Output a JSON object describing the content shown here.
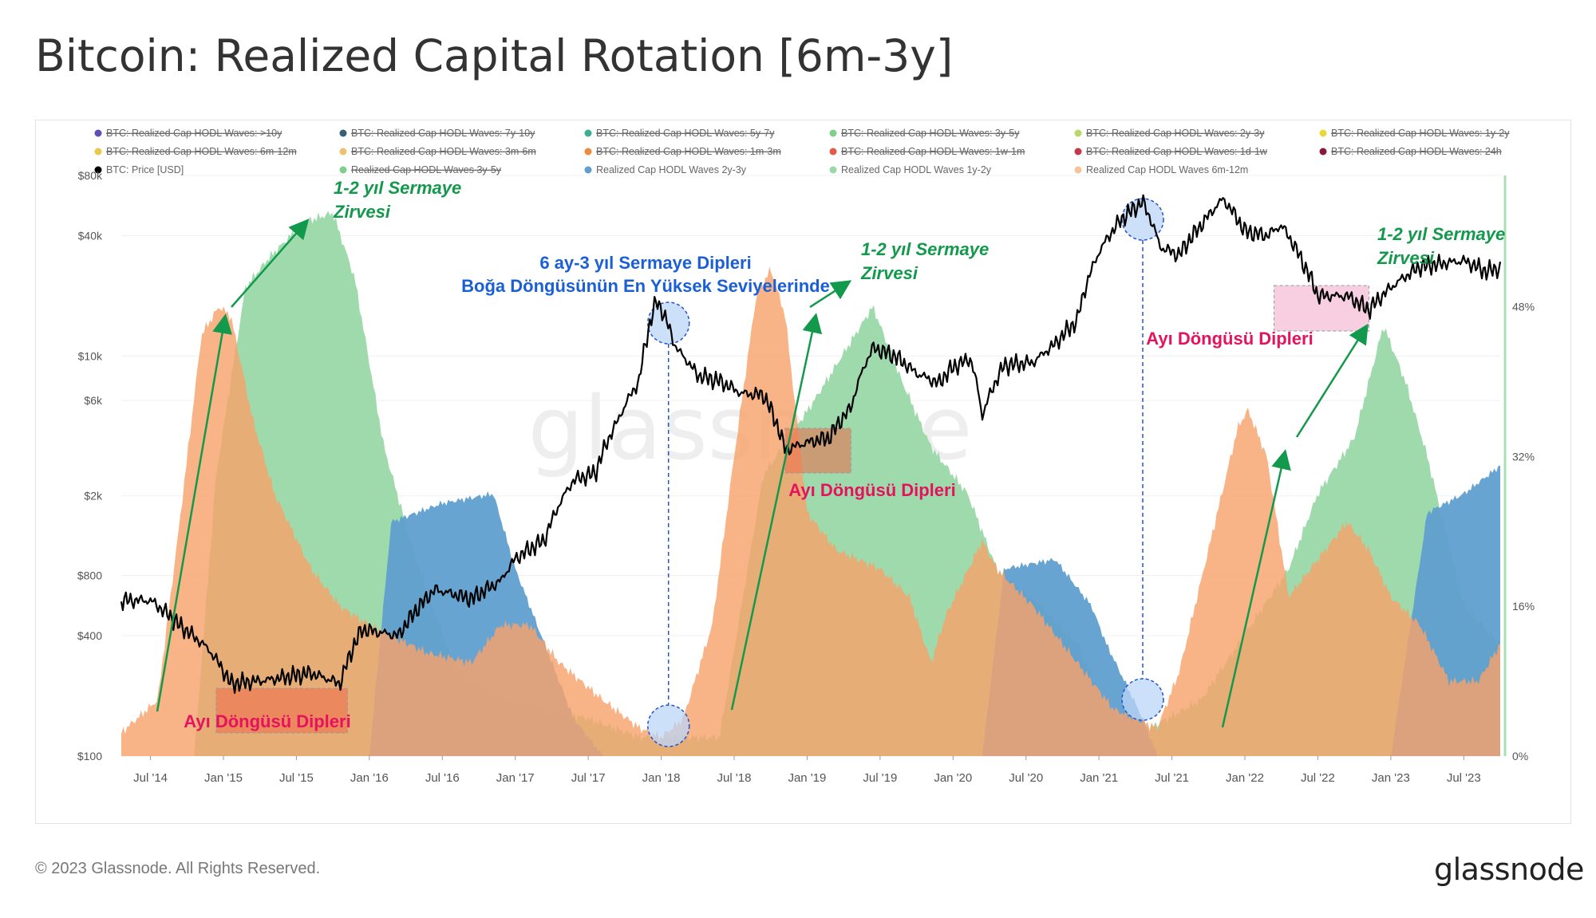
{
  "title": "Bitcoin: Realized Capital Rotation [6m-3y]",
  "footer": {
    "copyright": "© 2023 Glassnode. All Rights Reserved.",
    "logo": "glassnode"
  },
  "watermark": "glassnode",
  "colors": {
    "band_6m_12m": "#f6a26b",
    "band_1y_2y": "#99d8a8",
    "band_2y_3y": "#5f9fcf",
    "price": "#000000",
    "ann_green": "#12994b",
    "ann_blue": "#1a5fd6",
    "ann_red": "#e5135d",
    "axis_right": "#a7e1b3"
  },
  "legend": [
    {
      "label": "BTC: Realized Cap HODL Waves: >10y",
      "color": "#5e4fb3",
      "struck": true
    },
    {
      "label": "BTC: Realized Cap HODL Waves: 7y-10y",
      "color": "#36607a",
      "struck": true
    },
    {
      "label": "BTC: Realized Cap HODL Waves: 5y-7y",
      "color": "#3aaf8f",
      "struck": true
    },
    {
      "label": "BTC: Realized Cap HODL Waves: 3y-5y",
      "color": "#7fcf8c",
      "struck": true
    },
    {
      "label": "BTC: Realized Cap HODL Waves: 2y-3y",
      "color": "#b8d86a",
      "struck": true
    },
    {
      "label": "BTC: Realized Cap HODL Waves: 1y-2y",
      "color": "#e8d83a",
      "struck": true
    },
    {
      "label": "BTC: Realized Cap HODL Waves: 6m-12m",
      "color": "#e8c84a",
      "struck": true
    },
    {
      "label": "BTC: Realized Cap HODL Waves: 3m-6m",
      "color": "#efc070",
      "struck": true
    },
    {
      "label": "BTC: Realized Cap HODL Waves: 1m-3m",
      "color": "#f08a3c",
      "struck": true
    },
    {
      "label": "BTC: Realized Cap HODL Waves: 1w-1m",
      "color": "#e35a4a",
      "struck": true
    },
    {
      "label": "BTC: Realized Cap HODL Waves: 1d-1w",
      "color": "#c23a4a",
      "struck": true
    },
    {
      "label": "BTC: Realized Cap HODL Waves: 24h",
      "color": "#8a1a3a",
      "struck": true
    },
    {
      "label": "BTC: Price [USD]",
      "color": "#000000",
      "struck": false
    },
    {
      "label": "Realized Cap HODL Waves 3y-5y",
      "color": "#7fcf8c",
      "struck": true
    },
    {
      "label": "Realized Cap HODL Waves 2y-3y",
      "color": "#5f9fcf",
      "struck": false
    },
    {
      "label": "Realized Cap HODL Waves 1y-2y",
      "color": "#99d8a8",
      "struck": false
    },
    {
      "label": "Realized Cap HODL Waves 6m-12m",
      "color": "#f6c39a",
      "struck": false
    }
  ],
  "annotations": [
    {
      "lines": [
        "1-2 yıl Sermaye",
        "Zirvesi"
      ],
      "color": "green",
      "italic": true
    },
    {
      "lines": [
        "6 ay-3 yıl Sermaye Dipleri",
        "Boğa Döngüsünün En Yüksek Seviyelerinde"
      ],
      "color": "blue",
      "italic": false
    },
    {
      "lines": [
        "1-2 yıl Sermaye",
        "Zirvesi"
      ],
      "color": "green",
      "italic": true
    },
    {
      "lines": [
        "1-2 yıl Sermaye",
        "Zirvesi"
      ],
      "color": "green",
      "italic": true
    },
    {
      "lines": [
        "Ayı Döngüsü Dipleri"
      ],
      "color": "red",
      "italic": false
    },
    {
      "lines": [
        "Ayı Döngüsü Dipleri"
      ],
      "color": "red",
      "italic": false
    },
    {
      "lines": [
        "Ayı Döngüsü Dipleri"
      ],
      "color": "red",
      "italic": false
    }
  ],
  "chart_data": {
    "type": "area",
    "title": "Bitcoin: Realized Capital Rotation [6m-3y]",
    "x_tick_labels": [
      "Jul '14",
      "Jan '15",
      "Jul '15",
      "Jan '16",
      "Jul '16",
      "Jan '17",
      "Jul '17",
      "Jan '18",
      "Jul '18",
      "Jan '19",
      "Jul '19",
      "Jan '20",
      "Jul '20",
      "Jan '21",
      "Jul '21",
      "Jan '22",
      "Jul '22",
      "Jan '23",
      "Jul '23"
    ],
    "y_left": {
      "scale": "log",
      "ticks": [
        "$100",
        "$400",
        "$800",
        "$2k",
        "$6k",
        "$10k",
        "$40k",
        "$80k"
      ],
      "tick_values": [
        100,
        400,
        800,
        2000,
        6000,
        10000,
        40000,
        80000
      ],
      "ylim": [
        100,
        80000
      ]
    },
    "y_right": {
      "scale": "linear",
      "ticks": [
        "0%",
        "16%",
        "32%",
        "48%"
      ],
      "tick_values": [
        0,
        16,
        32,
        48
      ],
      "ylim": [
        0,
        62
      ]
    },
    "time_range_years": [
      2014.3,
      2023.75
    ],
    "series": [
      {
        "name": "Realized Cap HODL Waves 6m-12m",
        "stack": "none",
        "points": [
          [
            2014.3,
            2.5
          ],
          [
            2014.55,
            6
          ],
          [
            2014.7,
            25
          ],
          [
            2014.85,
            45
          ],
          [
            2014.97,
            48
          ],
          [
            2015.05,
            47
          ],
          [
            2015.2,
            36
          ],
          [
            2015.35,
            28
          ],
          [
            2015.6,
            20
          ],
          [
            2015.8,
            16
          ],
          [
            2016.0,
            14
          ],
          [
            2016.4,
            11
          ],
          [
            2016.7,
            10
          ],
          [
            2016.9,
            14
          ],
          [
            2017.1,
            14
          ],
          [
            2017.3,
            10
          ],
          [
            2017.6,
            6
          ],
          [
            2017.85,
            3
          ],
          [
            2018.0,
            2
          ],
          [
            2018.15,
            4
          ],
          [
            2018.35,
            14
          ],
          [
            2018.5,
            32
          ],
          [
            2018.65,
            49
          ],
          [
            2018.75,
            52
          ],
          [
            2018.85,
            47
          ],
          [
            2019.0,
            26
          ],
          [
            2019.2,
            22
          ],
          [
            2019.5,
            20
          ],
          [
            2019.7,
            17
          ],
          [
            2019.85,
            10
          ],
          [
            2019.95,
            15
          ],
          [
            2020.2,
            23
          ],
          [
            2020.3,
            20
          ],
          [
            2020.55,
            16
          ],
          [
            2020.9,
            9
          ],
          [
            2021.1,
            5
          ],
          [
            2021.4,
            3
          ],
          [
            2021.55,
            9
          ],
          [
            2021.75,
            22
          ],
          [
            2021.95,
            35
          ],
          [
            2022.02,
            37
          ],
          [
            2022.15,
            32
          ],
          [
            2022.3,
            17
          ],
          [
            2022.5,
            21
          ],
          [
            2022.7,
            25
          ],
          [
            2022.85,
            22
          ],
          [
            2023.0,
            17
          ],
          [
            2023.2,
            14
          ],
          [
            2023.4,
            8
          ],
          [
            2023.6,
            8
          ],
          [
            2023.75,
            12
          ]
        ]
      },
      {
        "name": "Realized Cap HODL Waves 1y-2y",
        "stack": "none",
        "points": [
          [
            2014.3,
            0
          ],
          [
            2014.8,
            0
          ],
          [
            2014.95,
            30
          ],
          [
            2015.15,
            50
          ],
          [
            2015.3,
            53
          ],
          [
            2015.55,
            57
          ],
          [
            2015.75,
            58
          ],
          [
            2015.9,
            51
          ],
          [
            2016.1,
            33
          ],
          [
            2016.3,
            22
          ],
          [
            2016.45,
            15
          ],
          [
            2016.6,
            9
          ],
          [
            2016.9,
            6
          ],
          [
            2017.2,
            5
          ],
          [
            2017.5,
            4
          ],
          [
            2017.85,
            2
          ],
          [
            2018.4,
            2
          ],
          [
            2018.7,
            30
          ],
          [
            2019.05,
            38
          ],
          [
            2019.25,
            43
          ],
          [
            2019.45,
            48
          ],
          [
            2019.65,
            40
          ],
          [
            2019.85,
            33
          ],
          [
            2020.1,
            28
          ],
          [
            2020.3,
            20
          ],
          [
            2020.6,
            16
          ],
          [
            2020.85,
            12
          ],
          [
            2021.05,
            5
          ],
          [
            2021.35,
            3
          ],
          [
            2021.7,
            6
          ],
          [
            2022.3,
            20
          ],
          [
            2022.5,
            28
          ],
          [
            2022.75,
            34
          ],
          [
            2022.95,
            46
          ],
          [
            2023.1,
            40
          ],
          [
            2023.25,
            32
          ],
          [
            2023.5,
            16
          ],
          [
            2023.75,
            12
          ]
        ]
      },
      {
        "name": "Realized Cap HODL Waves 2y-3y",
        "stack": "none",
        "points": [
          [
            2014.3,
            0
          ],
          [
            2016.0,
            0
          ],
          [
            2016.15,
            25
          ],
          [
            2016.5,
            27
          ],
          [
            2016.85,
            28
          ],
          [
            2017.0,
            20
          ],
          [
            2017.2,
            12
          ],
          [
            2017.4,
            4
          ],
          [
            2017.6,
            0
          ],
          [
            2020.2,
            0
          ],
          [
            2020.35,
            20
          ],
          [
            2020.7,
            21
          ],
          [
            2020.95,
            16
          ],
          [
            2021.05,
            12
          ],
          [
            2021.3,
            4
          ],
          [
            2021.4,
            0
          ],
          [
            2023.0,
            0
          ],
          [
            2023.25,
            26
          ],
          [
            2023.5,
            28
          ],
          [
            2023.75,
            31
          ]
        ]
      },
      {
        "name": "BTC: Price [USD]",
        "stack": "none",
        "points": [
          [
            2014.3,
            600
          ],
          [
            2014.5,
            600
          ],
          [
            2014.7,
            450
          ],
          [
            2014.9,
            340
          ],
          [
            2015.05,
            230
          ],
          [
            2015.3,
            240
          ],
          [
            2015.6,
            260
          ],
          [
            2015.8,
            230
          ],
          [
            2015.95,
            430
          ],
          [
            2016.2,
            400
          ],
          [
            2016.45,
            680
          ],
          [
            2016.7,
            610
          ],
          [
            2016.9,
            750
          ],
          [
            2017.0,
            970
          ],
          [
            2017.2,
            1200
          ],
          [
            2017.4,
            2400
          ],
          [
            2017.55,
            2600
          ],
          [
            2017.7,
            4700
          ],
          [
            2017.85,
            7500
          ],
          [
            2017.97,
            19000
          ],
          [
            2018.1,
            11000
          ],
          [
            2018.25,
            8000
          ],
          [
            2018.4,
            7500
          ],
          [
            2018.55,
            6500
          ],
          [
            2018.7,
            6400
          ],
          [
            2018.85,
            3400
          ],
          [
            2019.0,
            3700
          ],
          [
            2019.15,
            3900
          ],
          [
            2019.3,
            5500
          ],
          [
            2019.45,
            11000
          ],
          [
            2019.6,
            10000
          ],
          [
            2019.75,
            8200
          ],
          [
            2019.9,
            7300
          ],
          [
            2020.0,
            8800
          ],
          [
            2020.12,
            9700
          ],
          [
            2020.2,
            5000
          ],
          [
            2020.35,
            9000
          ],
          [
            2020.55,
            9300
          ],
          [
            2020.7,
            11500
          ],
          [
            2020.85,
            15000
          ],
          [
            2021.0,
            33000
          ],
          [
            2021.15,
            48000
          ],
          [
            2021.3,
            59000
          ],
          [
            2021.42,
            35000
          ],
          [
            2021.55,
            32000
          ],
          [
            2021.7,
            45000
          ],
          [
            2021.85,
            61000
          ],
          [
            2022.0,
            42000
          ],
          [
            2022.15,
            40000
          ],
          [
            2022.25,
            45000
          ],
          [
            2022.4,
            29000
          ],
          [
            2022.5,
            20000
          ],
          [
            2022.7,
            20000
          ],
          [
            2022.85,
            17000
          ],
          [
            2023.0,
            22000
          ],
          [
            2023.2,
            28000
          ],
          [
            2023.35,
            29000
          ],
          [
            2023.5,
            30000
          ],
          [
            2023.65,
            26500
          ],
          [
            2023.75,
            27500
          ]
        ]
      }
    ]
  }
}
